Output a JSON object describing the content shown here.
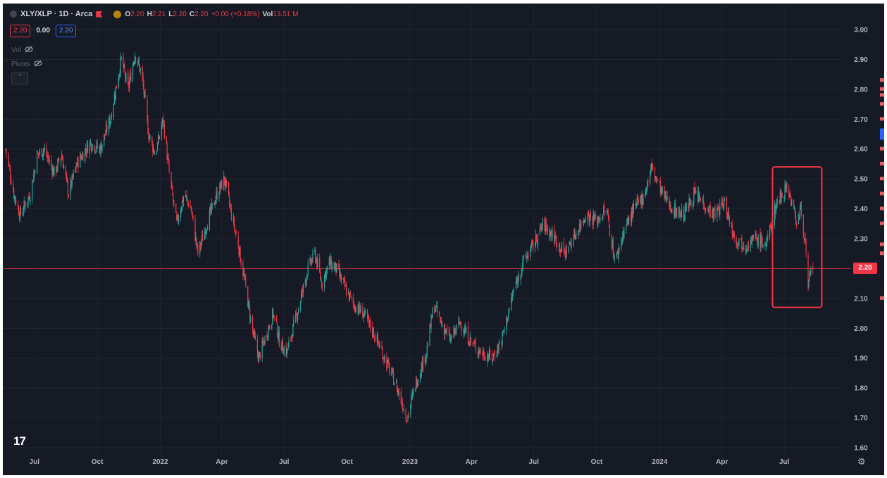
{
  "legend": {
    "title": "XLY/XLP · 1D · Arca",
    "o_label": "O",
    "o_value": "2.20",
    "h_label": "H",
    "h_value": "2.21",
    "l_label": "L",
    "l_value": "2.20",
    "c_label": "C",
    "c_value": "2.20",
    "change": "+0.00 (+0.18%)",
    "vol_label": "Vol",
    "vol_value": "13.51 M"
  },
  "badges": {
    "sell": "2.20",
    "spread": "0.00",
    "buy": "2.20"
  },
  "indicators": {
    "vol": "Vol",
    "pivots": "Pivots"
  },
  "icons": {
    "hide": "eye-off-icon",
    "collapse": "chevron-up-icon",
    "settings": "gear-icon",
    "logo": "tradingview-logo"
  },
  "logo_text": "17",
  "current_price": "2.20",
  "colors": {
    "background": "#161a25",
    "up": "#26a69a",
    "down": "#f23645",
    "highlight": "#f23645"
  },
  "chart_data": {
    "type": "candlestick",
    "symbol": "XLY/XLP",
    "interval": "1D",
    "ylim": [
      1.6,
      3.0
    ],
    "yticks": [
      "3.00",
      "2.90",
      "2.80",
      "2.70",
      "2.60",
      "2.50",
      "2.40",
      "2.30",
      "2.20",
      "2.10",
      "2.00",
      "1.90",
      "1.80",
      "1.70",
      "1.60"
    ],
    "xticks": [
      "Jul",
      "Oct",
      "2022",
      "Apr",
      "Jul",
      "Oct",
      "2023",
      "Apr",
      "Jul",
      "Oct",
      "2024",
      "Apr",
      "Jul"
    ],
    "x_range": [
      "2021-05-20",
      "2024-09-10"
    ],
    "price_line": 2.2,
    "price_path": [
      [
        "2021-05-20",
        2.6
      ],
      [
        "2021-06-01",
        2.45
      ],
      [
        "2021-06-10",
        2.38
      ],
      [
        "2021-06-25",
        2.45
      ],
      [
        "2021-07-05",
        2.58
      ],
      [
        "2021-07-15",
        2.6
      ],
      [
        "2021-07-30",
        2.52
      ],
      [
        "2021-08-10",
        2.58
      ],
      [
        "2021-08-20",
        2.45
      ],
      [
        "2021-09-01",
        2.55
      ],
      [
        "2021-09-20",
        2.62
      ],
      [
        "2021-10-05",
        2.6
      ],
      [
        "2021-10-20",
        2.7
      ],
      [
        "2021-11-05",
        2.9
      ],
      [
        "2021-11-15",
        2.8
      ],
      [
        "2021-11-25",
        2.92
      ],
      [
        "2021-12-05",
        2.85
      ],
      [
        "2021-12-15",
        2.65
      ],
      [
        "2021-12-25",
        2.58
      ],
      [
        "2022-01-05",
        2.7
      ],
      [
        "2022-01-15",
        2.5
      ],
      [
        "2022-01-25",
        2.35
      ],
      [
        "2022-02-05",
        2.45
      ],
      [
        "2022-02-15",
        2.4
      ],
      [
        "2022-02-25",
        2.25
      ],
      [
        "2022-03-10",
        2.35
      ],
      [
        "2022-03-25",
        2.45
      ],
      [
        "2022-04-05",
        2.5
      ],
      [
        "2022-04-15",
        2.38
      ],
      [
        "2022-04-25",
        2.28
      ],
      [
        "2022-05-05",
        2.15
      ],
      [
        "2022-05-15",
        2.0
      ],
      [
        "2022-05-25",
        1.9
      ],
      [
        "2022-06-05",
        1.98
      ],
      [
        "2022-06-15",
        2.05
      ],
      [
        "2022-06-25",
        1.95
      ],
      [
        "2022-07-05",
        1.92
      ],
      [
        "2022-07-20",
        2.05
      ],
      [
        "2022-08-05",
        2.2
      ],
      [
        "2022-08-15",
        2.25
      ],
      [
        "2022-08-25",
        2.15
      ],
      [
        "2022-09-05",
        2.22
      ],
      [
        "2022-09-15",
        2.2
      ],
      [
        "2022-09-25",
        2.15
      ],
      [
        "2022-10-10",
        2.08
      ],
      [
        "2022-10-25",
        2.05
      ],
      [
        "2022-11-10",
        1.98
      ],
      [
        "2022-11-25",
        1.9
      ],
      [
        "2022-12-10",
        1.82
      ],
      [
        "2022-12-28",
        1.7
      ],
      [
        "2023-01-10",
        1.82
      ],
      [
        "2023-01-25",
        1.92
      ],
      [
        "2023-02-05",
        2.08
      ],
      [
        "2023-02-15",
        2.02
      ],
      [
        "2023-03-01",
        1.96
      ],
      [
        "2023-03-15",
        2.02
      ],
      [
        "2023-04-01",
        1.95
      ],
      [
        "2023-04-15",
        1.92
      ],
      [
        "2023-05-01",
        1.9
      ],
      [
        "2023-05-15",
        1.96
      ],
      [
        "2023-06-01",
        2.12
      ],
      [
        "2023-06-15",
        2.22
      ],
      [
        "2023-07-01",
        2.28
      ],
      [
        "2023-07-15",
        2.35
      ],
      [
        "2023-08-01",
        2.3
      ],
      [
        "2023-08-15",
        2.25
      ],
      [
        "2023-09-01",
        2.32
      ],
      [
        "2023-09-15",
        2.38
      ],
      [
        "2023-10-01",
        2.36
      ],
      [
        "2023-10-15",
        2.4
      ],
      [
        "2023-10-28",
        2.22
      ],
      [
        "2023-11-10",
        2.33
      ],
      [
        "2023-11-25",
        2.4
      ],
      [
        "2023-12-10",
        2.45
      ],
      [
        "2023-12-20",
        2.54
      ],
      [
        "2024-01-05",
        2.45
      ],
      [
        "2024-01-20",
        2.4
      ],
      [
        "2024-02-05",
        2.38
      ],
      [
        "2024-02-20",
        2.45
      ],
      [
        "2024-03-05",
        2.42
      ],
      [
        "2024-03-20",
        2.38
      ],
      [
        "2024-04-05",
        2.42
      ],
      [
        "2024-04-20",
        2.3
      ],
      [
        "2024-05-05",
        2.28
      ],
      [
        "2024-05-20",
        2.3
      ],
      [
        "2024-06-05",
        2.28
      ],
      [
        "2024-06-20",
        2.42
      ],
      [
        "2024-07-05",
        2.48
      ],
      [
        "2024-07-12",
        2.42
      ],
      [
        "2024-07-20",
        2.35
      ],
      [
        "2024-07-25",
        2.4
      ],
      [
        "2024-07-30",
        2.32
      ],
      [
        "2024-08-02",
        2.25
      ],
      [
        "2024-08-05",
        2.12
      ],
      [
        "2024-08-08",
        2.18
      ],
      [
        "2024-08-12",
        2.21
      ]
    ],
    "highlight_box": {
      "x_range": [
        "2024-06-14",
        "2024-08-25"
      ],
      "y_range": [
        2.07,
        2.54
      ]
    }
  }
}
